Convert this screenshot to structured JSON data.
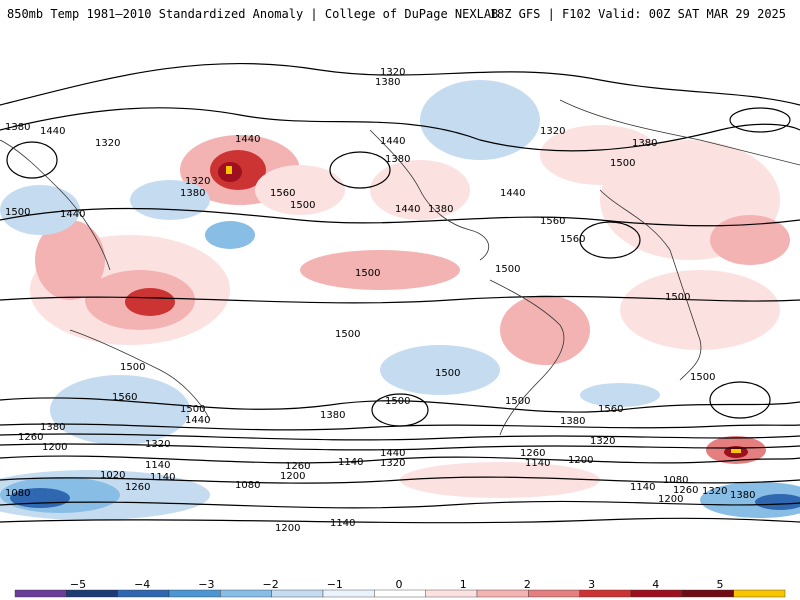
{
  "header": {
    "left_title": "850mb Temp 1981–2010 Standardized Anomaly | College of DuPage NEXLAB",
    "right_title": "18Z GFS | F102 Valid: 00Z SAT MAR 29 2025"
  },
  "map": {
    "projection": "global cylindrical",
    "contour_color": "#000000",
    "contour_labels": [
      "1320",
      "1380",
      "1380",
      "1440",
      "1320",
      "1440",
      "1320",
      "1380",
      "1560",
      "1500",
      "1440",
      "1380",
      "1440",
      "1380",
      "1320",
      "1500",
      "1380",
      "1440",
      "1560",
      "1560",
      "1500",
      "1440",
      "1500",
      "1500",
      "1500",
      "1500",
      "1500",
      "1560",
      "1500",
      "1500",
      "1500",
      "1500",
      "1500",
      "1560",
      "1380",
      "1440",
      "1320",
      "1380",
      "1440",
      "1260",
      "1200",
      "1320",
      "1140",
      "1020",
      "1140",
      "1260",
      "1080",
      "1260",
      "1200",
      "1140",
      "1380",
      "1320",
      "1260",
      "1140",
      "1200",
      "1080",
      "1200",
      "1260",
      "1140",
      "1320",
      "1380",
      "1080",
      "1200",
      "1140"
    ]
  },
  "colorbar": {
    "ticks": [
      "−5",
      "−4",
      "−3",
      "−2",
      "−1",
      "0",
      "1",
      "2",
      "3",
      "4",
      "5"
    ],
    "colors": [
      "#6a3d9a",
      "#1f3b73",
      "#2f67b1",
      "#4c96d3",
      "#88bde6",
      "#c5dcf0",
      "#eaf3fb",
      "#ffffff",
      "#fce1e1",
      "#f3b3b3",
      "#e57f7f",
      "#cc3333",
      "#9e0f1f",
      "#6e0b14",
      "#f7c600"
    ]
  }
}
